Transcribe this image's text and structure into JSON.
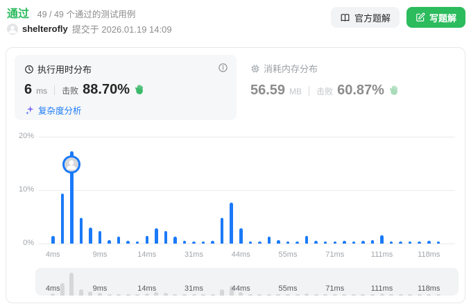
{
  "header": {
    "status": "通过",
    "cases": "49 / 49 个通过的测试用例",
    "username": "shelterofly",
    "submitted": "提交于 2026.01.19 14:09",
    "official_solution_label": "官方题解",
    "write_solution_label": "写题解"
  },
  "runtime_card": {
    "title": "执行用时分布",
    "value": "6",
    "unit": "ms",
    "beats_label": "击败",
    "beats_value": "88.70%",
    "analysis_label": "复杂度分析"
  },
  "memory_card": {
    "title": "消耗内存分布",
    "value": "56.59",
    "unit": "MB",
    "beats_label": "击败",
    "beats_value": "60.87%"
  },
  "colors": {
    "accent_green": "#2cbb5d",
    "bar_blue": "#1a7af8",
    "link_blue": "#1a7af8",
    "grid_gray": "#ebebeb",
    "mini_bar_gray": "#d5d7da"
  },
  "chart_data": {
    "type": "bar",
    "title": "执行用时分布",
    "xlabel": "",
    "ylabel": "",
    "x_unit": "ms",
    "ylim": [
      0,
      20
    ],
    "ytick_percents": [
      20,
      10,
      0
    ],
    "x_tick_labels": [
      "4ms",
      "9ms",
      "14ms",
      "31ms",
      "44ms",
      "55ms",
      "71ms",
      "111ms",
      "118ms"
    ],
    "x_tick_every": 5,
    "values_percent": [
      1.4,
      9.3,
      17.3,
      4.8,
      3.0,
      2.3,
      0.6,
      1.3,
      0.5,
      0.4,
      1.4,
      2.9,
      2.3,
      1.3,
      0.5,
      0.4,
      0.4,
      0.5,
      4.8,
      7.6,
      2.9,
      0.35,
      0.4,
      1.3,
      0.7,
      0.35,
      0.4,
      1.4,
      0.5,
      0.4,
      0.4,
      0.5,
      0.4,
      0.5,
      0.65,
      1.6,
      0.4,
      0.35,
      0.4,
      0.4,
      0.5,
      0.35
    ],
    "user_bar_index": 2,
    "user_runtime_label": "6 ms",
    "legend_position": "none",
    "grid": true,
    "has_minimap_brush": true
  }
}
